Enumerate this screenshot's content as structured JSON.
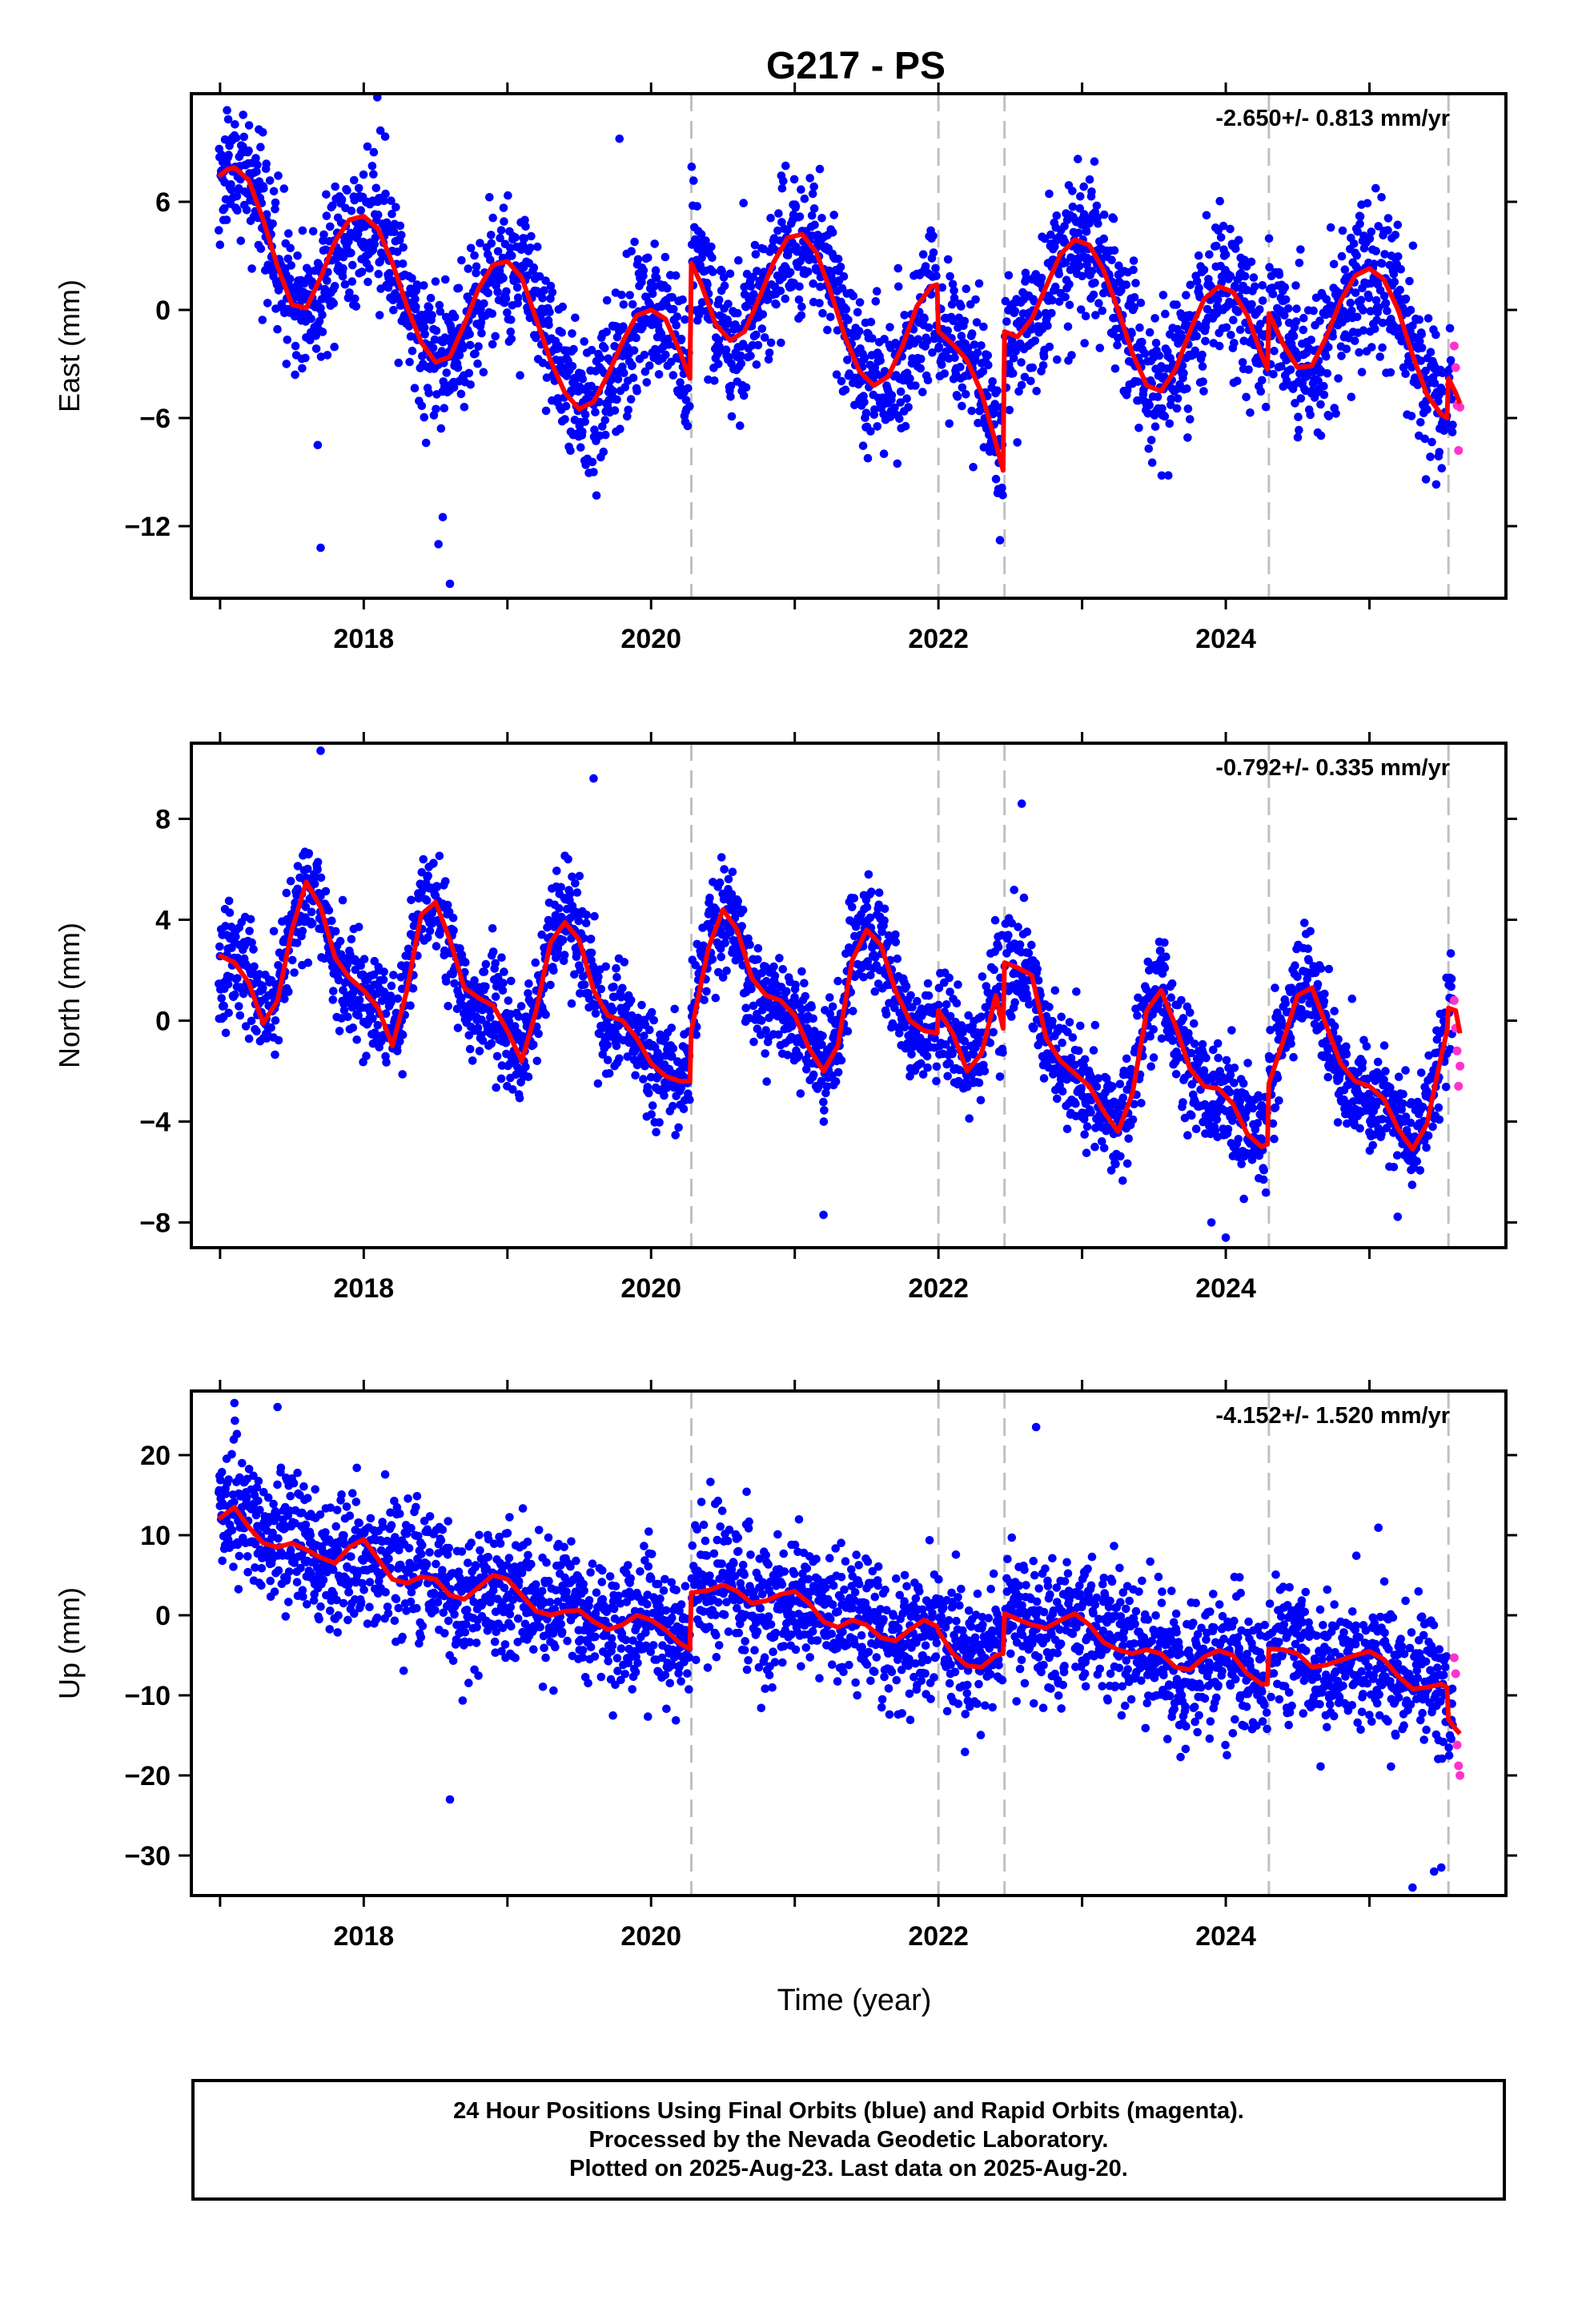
{
  "title": "G217 - PS",
  "x_axis_label": "Time (year)",
  "footer": {
    "line1": "24 Hour Positions Using Final Orbits (blue) and Rapid Orbits (magenta).",
    "line2": "Processed by the Nevada Geodetic Laboratory.",
    "line3": "Plotted on 2025-Aug-23. Last data on 2025-Aug-20."
  },
  "colors": {
    "final_orbits": "#0000ff",
    "rapid_orbits": "#ff33cc",
    "model_fit": "#ff0000",
    "offset_lines": "#c0c0c0"
  },
  "chart_data": [
    {
      "type": "scatter",
      "name": "East",
      "ylabel": "East (mm)",
      "rate": "-2.650+/- 0.813 mm/yr",
      "xlim": [
        2016.8,
        2025.95
      ],
      "ylim": [
        -16,
        12
      ],
      "xticks": [
        2018,
        2020,
        2022,
        2024
      ],
      "yticks": [
        -12,
        -6,
        0,
        6
      ],
      "offset_lines": [
        2020.28,
        2022.0,
        2022.46,
        2024.3,
        2025.55
      ],
      "fit_series": [
        {
          "x": [
            2016.99,
            2017.05,
            2017.1,
            2017.2,
            2017.3,
            2017.4,
            2017.5,
            2017.6,
            2017.7,
            2017.8,
            2017.9,
            2018.0,
            2018.1,
            2018.2,
            2018.3,
            2018.4,
            2018.5,
            2018.6,
            2018.7,
            2018.8,
            2018.9,
            2019.0,
            2019.1,
            2019.2,
            2019.3,
            2019.4,
            2019.5,
            2019.6,
            2019.7,
            2019.8,
            2019.9,
            2020.0,
            2020.1,
            2020.2,
            2020.27
          ],
          "y": [
            7.4,
            7.8,
            7.9,
            7.2,
            5.0,
            2.4,
            0.3,
            0.1,
            1.8,
            3.8,
            5.0,
            5.2,
            4.5,
            2.6,
            0.2,
            -1.8,
            -2.9,
            -2.6,
            -0.8,
            1.2,
            2.5,
            2.7,
            1.8,
            -0.5,
            -2.8,
            -4.6,
            -5.5,
            -5.1,
            -3.6,
            -1.8,
            -0.3,
            0.0,
            -0.5,
            -2.3,
            -3.8
          ]
        },
        {
          "x": [
            2020.28,
            2020.35,
            2020.45,
            2020.55,
            2020.65,
            2020.75,
            2020.85,
            2020.95,
            2021.05,
            2021.15,
            2021.25,
            2021.35,
            2021.45,
            2021.55,
            2021.65,
            2021.75,
            2021.85,
            2021.95,
            2021.99
          ],
          "y": [
            2.6,
            1.4,
            -0.8,
            -1.7,
            -1.2,
            0.6,
            2.6,
            4.0,
            4.2,
            3.2,
            1.0,
            -1.5,
            -3.4,
            -4.2,
            -3.7,
            -2.0,
            0.2,
            1.3,
            1.4
          ]
        },
        {
          "x": [
            2022.0,
            2022.1,
            2022.2,
            2022.3,
            2022.4,
            2022.45
          ],
          "y": [
            -1.2,
            -1.9,
            -2.8,
            -4.6,
            -7.4,
            -8.9
          ]
        },
        {
          "x": [
            2022.46,
            2022.55,
            2022.65,
            2022.75,
            2022.85,
            2022.95,
            2023.05,
            2023.15,
            2023.25,
            2023.35,
            2023.45,
            2023.55,
            2023.65,
            2023.75,
            2023.85,
            2023.95,
            2024.05,
            2024.15,
            2024.25,
            2024.29
          ],
          "y": [
            -1.2,
            -1.5,
            -0.5,
            1.3,
            3.1,
            3.9,
            3.6,
            2.2,
            0.0,
            -2.4,
            -4.2,
            -4.5,
            -3.3,
            -1.2,
            0.6,
            1.3,
            1.0,
            -0.3,
            -2.5,
            -3.3
          ]
        },
        {
          "x": [
            2024.3,
            2024.4,
            2024.5,
            2024.6,
            2024.7,
            2024.8,
            2024.9,
            2025.0,
            2025.1,
            2025.2,
            2025.3,
            2025.4,
            2025.5,
            2025.54
          ],
          "y": [
            -0.2,
            -1.9,
            -3.2,
            -3.1,
            -1.5,
            0.5,
            1.9,
            2.3,
            1.7,
            0.0,
            -2.5,
            -4.7,
            -5.8,
            -6.0
          ]
        },
        {
          "x": [
            2025.55,
            2025.6,
            2025.63
          ],
          "y": [
            -3.8,
            -4.6,
            -5.2
          ]
        }
      ],
      "scatter_seed": 11,
      "scatter_noise": 2.6,
      "rapid_points": {
        "x": [
          2025.59,
          2025.6,
          2025.61,
          2025.62,
          2025.63
        ],
        "y": [
          -2.0,
          -3.2,
          -5.3,
          -7.8,
          -5.4
        ]
      },
      "outlier_points": {
        "x": [
          2017.7,
          2017.68,
          2018.52,
          2018.55,
          2018.6,
          2019.6,
          2019.62,
          2019.78
        ],
        "y": [
          -13.2,
          -7.5,
          -13.0,
          -11.5,
          -15.2,
          -9.0,
          -10.3,
          9.5
        ]
      }
    },
    {
      "type": "scatter",
      "name": "North",
      "ylabel": "North (mm)",
      "rate": "-0.792+/- 0.335 mm/yr",
      "xlim": [
        2016.8,
        2025.95
      ],
      "ylim": [
        -9,
        11
      ],
      "xticks": [
        2018,
        2020,
        2022,
        2024
      ],
      "yticks": [
        -8,
        -4,
        0,
        4,
        8
      ],
      "offset_lines": [
        2020.28,
        2022.0,
        2022.46,
        2024.3,
        2025.55
      ],
      "fit_series": [
        {
          "x": [
            2016.99,
            2017.1,
            2017.2,
            2017.3,
            2017.4,
            2017.5,
            2017.6,
            2017.7,
            2017.8,
            2017.9,
            2018.0,
            2018.1,
            2018.2,
            2018.3,
            2018.4,
            2018.5,
            2018.6,
            2018.7,
            2018.8,
            2018.9,
            2019.0,
            2019.1,
            2019.2,
            2019.3,
            2019.4,
            2019.5,
            2019.6,
            2019.7,
            2019.8,
            2019.9,
            2020.0,
            2020.1,
            2020.2,
            2020.27
          ],
          "y": [
            2.6,
            2.3,
            1.5,
            -0.1,
            0.8,
            3.6,
            5.5,
            4.5,
            2.5,
            1.7,
            1.2,
            0.5,
            -1.0,
            1.2,
            4.2,
            4.7,
            3.2,
            1.3,
            0.9,
            0.6,
            -0.4,
            -1.6,
            0.4,
            3.1,
            3.9,
            3.2,
            1.2,
            0.2,
            0.0,
            -0.7,
            -1.7,
            -2.2,
            -2.4,
            -2.4
          ]
        },
        {
          "x": [
            2020.28,
            2020.4,
            2020.5,
            2020.6,
            2020.7,
            2020.8,
            2020.9,
            2021.0,
            2021.1,
            2021.2,
            2021.3,
            2021.4,
            2021.5,
            2021.6,
            2021.7,
            2021.8,
            2021.9,
            2021.99
          ],
          "y": [
            -0.4,
            2.9,
            4.4,
            3.6,
            1.7,
            1.0,
            0.8,
            0.2,
            -1.1,
            -2.0,
            -1.0,
            2.4,
            3.6,
            3.0,
            1.2,
            0.0,
            -0.4,
            -0.5
          ]
        },
        {
          "x": [
            2022.0,
            2022.1,
            2022.2,
            2022.3,
            2022.4,
            2022.45
          ],
          "y": [
            0.4,
            -0.5,
            -2.0,
            -1.3,
            1.0,
            -0.3
          ]
        },
        {
          "x": [
            2022.46,
            2022.55,
            2022.65,
            2022.75,
            2022.85,
            2022.95,
            2023.05,
            2023.15,
            2023.25,
            2023.35,
            2023.45,
            2023.55,
            2023.65,
            2023.75,
            2023.85,
            2023.95,
            2024.05,
            2024.15,
            2024.25,
            2024.29
          ],
          "y": [
            2.3,
            2.1,
            1.8,
            -0.7,
            -1.6,
            -2.1,
            -2.6,
            -3.6,
            -4.4,
            -2.9,
            0.4,
            1.2,
            -0.2,
            -1.9,
            -2.6,
            -2.7,
            -3.3,
            -4.5,
            -5.0,
            -4.9
          ]
        },
        {
          "x": [
            2024.3,
            2024.4,
            2024.5,
            2024.6,
            2024.7,
            2024.8,
            2024.9,
            2025.0,
            2025.1,
            2025.2,
            2025.3,
            2025.4,
            2025.5,
            2025.54
          ],
          "y": [
            -2.5,
            -0.8,
            1.0,
            1.3,
            -0.2,
            -1.7,
            -2.4,
            -2.6,
            -3.1,
            -4.3,
            -5.1,
            -4.1,
            -1.4,
            -0.4
          ]
        },
        {
          "x": [
            2025.55,
            2025.6,
            2025.63
          ],
          "y": [
            0.5,
            0.4,
            -0.5
          ]
        }
      ],
      "scatter_seed": 23,
      "scatter_noise": 1.4,
      "rapid_points": {
        "x": [
          2025.59,
          2025.6,
          2025.61,
          2025.62,
          2025.63
        ],
        "y": [
          0.8,
          -0.3,
          -1.2,
          -2.6,
          -1.8
        ]
      },
      "outlier_points": {
        "x": [
          2017.7,
          2019.6,
          2021.2,
          2022.58,
          2024.0,
          2023.9
        ],
        "y": [
          10.7,
          9.6,
          -7.7,
          8.6,
          -8.6,
          -8.0
        ]
      }
    },
    {
      "type": "scatter",
      "name": "Up",
      "ylabel": "Up (mm)",
      "rate": "-4.152+/- 1.520 mm/yr",
      "xlim": [
        2016.8,
        2025.95
      ],
      "ylim": [
        -35,
        28
      ],
      "xticks": [
        2018,
        2020,
        2022,
        2024
      ],
      "yticks": [
        -30,
        -20,
        -10,
        0,
        10,
        20
      ],
      "offset_lines": [
        2020.28,
        2022.0,
        2022.46,
        2024.3,
        2025.55
      ],
      "fit_series": [
        {
          "x": [
            2016.99,
            2017.1,
            2017.2,
            2017.3,
            2017.4,
            2017.5,
            2017.6,
            2017.7,
            2017.8,
            2017.9,
            2018.0,
            2018.1,
            2018.2,
            2018.3,
            2018.4,
            2018.5,
            2018.6,
            2018.7,
            2018.8,
            2018.9,
            2019.0,
            2019.1,
            2019.2,
            2019.3,
            2019.4,
            2019.5,
            2019.6,
            2019.7,
            2019.8,
            2019.9,
            2020.0,
            2020.1,
            2020.2,
            2020.27
          ],
          "y": [
            12.0,
            13.5,
            11.0,
            9.0,
            8.5,
            9.0,
            8.2,
            7.2,
            6.5,
            8.5,
            9.5,
            7.0,
            4.5,
            4.0,
            4.8,
            4.5,
            2.5,
            2.0,
            3.5,
            5.0,
            4.5,
            2.5,
            0.5,
            0.0,
            0.5,
            0.6,
            -0.8,
            -1.8,
            -1.2,
            0.0,
            -0.6,
            -1.8,
            -3.5,
            -4.2
          ]
        },
        {
          "x": [
            2020.28,
            2020.4,
            2020.5,
            2020.6,
            2020.7,
            2020.8,
            2020.9,
            2021.0,
            2021.1,
            2021.2,
            2021.3,
            2021.4,
            2021.5,
            2021.6,
            2021.7,
            2021.8,
            2021.9,
            2021.99
          ],
          "y": [
            2.8,
            3.1,
            3.8,
            3.0,
            1.5,
            1.8,
            2.6,
            3.0,
            1.5,
            -0.8,
            -1.5,
            -0.6,
            -1.2,
            -2.8,
            -3.2,
            -1.8,
            -0.6,
            -1.4
          ]
        },
        {
          "x": [
            2022.0,
            2022.1,
            2022.2,
            2022.3,
            2022.4,
            2022.45
          ],
          "y": [
            -2.0,
            -4.8,
            -6.3,
            -6.5,
            -5.0,
            -4.8
          ]
        },
        {
          "x": [
            2022.46,
            2022.55,
            2022.65,
            2022.75,
            2022.85,
            2022.95,
            2023.05,
            2023.15,
            2023.25,
            2023.35,
            2023.45,
            2023.55,
            2023.65,
            2023.75,
            2023.85,
            2023.95,
            2024.05,
            2024.15,
            2024.25,
            2024.29
          ],
          "y": [
            0.2,
            -0.5,
            -1.2,
            -1.6,
            -0.6,
            0.2,
            -1.2,
            -3.4,
            -4.3,
            -4.8,
            -4.3,
            -4.8,
            -6.5,
            -6.8,
            -5.2,
            -4.4,
            -5.0,
            -7.3,
            -8.6,
            -8.6
          ]
        },
        {
          "x": [
            2024.3,
            2024.4,
            2024.5,
            2024.6,
            2024.7,
            2024.8,
            2024.9,
            2025.0,
            2025.1,
            2025.2,
            2025.3,
            2025.4,
            2025.5,
            2025.54
          ],
          "y": [
            -4.2,
            -4.3,
            -4.8,
            -6.5,
            -6.2,
            -5.6,
            -5.0,
            -4.5,
            -5.5,
            -7.6,
            -9.2,
            -9.0,
            -8.6,
            -9.0
          ]
        },
        {
          "x": [
            2025.55,
            2025.6,
            2025.63
          ],
          "y": [
            -13.0,
            -14.2,
            -14.8
          ]
        }
      ],
      "scatter_seed": 37,
      "scatter_noise": 5.5,
      "rapid_points": {
        "x": [
          2025.59,
          2025.6,
          2025.61,
          2025.62,
          2025.63
        ],
        "y": [
          -5.3,
          -7.3,
          -16.2,
          -18.8,
          -20.0
        ]
      },
      "outlier_points": {
        "x": [
          2017.1,
          2017.4,
          2022.68,
          2018.6,
          2025.3,
          2025.45,
          2025.5
        ],
        "y": [
          26.5,
          26.0,
          23.5,
          -23.0,
          -34.0,
          -32.0,
          -31.5
        ]
      }
    }
  ]
}
